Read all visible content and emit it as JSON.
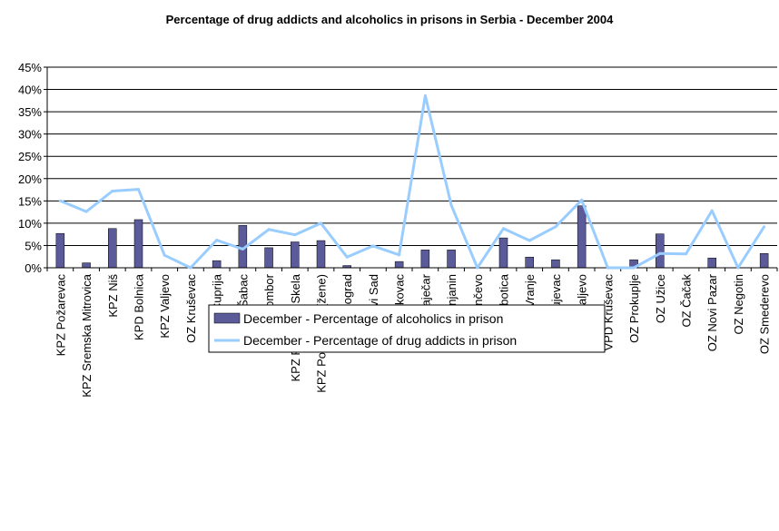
{
  "chart_data": {
    "type": "bar",
    "title": "Percentage of drug addicts and alcoholics in prisons in Serbia - December 2004",
    "xlabel": "",
    "ylabel": "",
    "ylim": [
      0,
      45
    ],
    "yticks": [
      "0%",
      "5%",
      "10%",
      "15%",
      "20%",
      "25%",
      "30%",
      "35%",
      "40%",
      "45%"
    ],
    "grid": true,
    "legend_position": "bottom",
    "categories": [
      "KPZ Požarevac",
      "KPZ Sremska Mitrovica",
      "KPZ Niš",
      "KPD Bolnica",
      "KPZ Valjevo",
      "OZ Kruševac",
      "KPZ Ćuprija",
      "KPZ Šabac",
      "KPZ Sombor",
      "KPZ Padinska Skela",
      "KPZ Požarevac (žene)",
      "OZ Beograd",
      "OZ Novi Sad",
      "OZ Leskovac",
      "OZ Zaječar",
      "OZ Zrenjanin",
      "OZ Pančevo",
      "OZ Subotica",
      "OZ Vranje",
      "OZ Kragujevac",
      "OZ Kraljevo",
      "VPD Kruševac",
      "OZ Prokuplje",
      "OZ Užice",
      "OZ Čačak",
      "OZ Novi Pazar",
      "OZ Negotin",
      "OZ Smederevo"
    ],
    "series": [
      {
        "name": "December - Percentage of alcoholics in prison",
        "kind": "bar",
        "color": "#5b5b99",
        "values": [
          7.7,
          1.1,
          8.8,
          10.8,
          0,
          0,
          1.6,
          9.5,
          4.5,
          5.8,
          6.1,
          0.5,
          0,
          1.4,
          4.0,
          4.0,
          0,
          6.7,
          2.4,
          1.8,
          13.9,
          0,
          1.8,
          7.6,
          0,
          2.2,
          0,
          3.2
        ]
      },
      {
        "name": "December - Percentage of drug addicts in prison",
        "kind": "line",
        "color": "#99ccff",
        "values": [
          15.0,
          12.6,
          17.2,
          17.6,
          2.8,
          0,
          6.2,
          4.2,
          8.6,
          7.4,
          10.0,
          2.4,
          4.9,
          2.9,
          38.6,
          14.0,
          0,
          8.8,
          6.1,
          9.2,
          15.2,
          0,
          0,
          3.2,
          3.1,
          12.8,
          0,
          9.2
        ]
      }
    ]
  }
}
